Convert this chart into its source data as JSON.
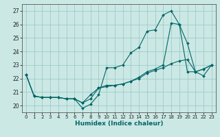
{
  "xlabel": "Humidex (Indice chaleur)",
  "background_color": "#cce8e4",
  "grid_color": "#99cccc",
  "line_color": "#006666",
  "xlim": [
    -0.5,
    23.5
  ],
  "ylim": [
    19.5,
    27.5
  ],
  "yticks": [
    20,
    21,
    22,
    23,
    24,
    25,
    26,
    27
  ],
  "xticks": [
    0,
    1,
    2,
    3,
    4,
    5,
    6,
    7,
    8,
    9,
    10,
    11,
    12,
    13,
    14,
    15,
    16,
    17,
    18,
    19,
    20,
    21,
    22,
    23
  ],
  "series": [
    [
      22.3,
      20.7,
      20.6,
      20.6,
      20.6,
      20.5,
      20.5,
      19.8,
      20.1,
      20.8,
      22.8,
      22.8,
      23.0,
      23.9,
      24.3,
      25.5,
      25.6,
      26.7,
      27.0,
      26.0,
      24.6,
      22.5,
      22.7,
      23.0
    ],
    [
      22.3,
      20.7,
      20.6,
      20.6,
      20.6,
      20.5,
      20.5,
      20.2,
      20.5,
      21.3,
      21.4,
      21.5,
      21.6,
      21.8,
      22.0,
      22.4,
      22.6,
      22.8,
      23.1,
      23.3,
      23.4,
      22.5,
      22.7,
      23.0
    ],
    [
      22.3,
      20.7,
      20.6,
      20.6,
      20.6,
      20.5,
      20.5,
      20.2,
      20.8,
      21.3,
      21.5,
      21.5,
      21.6,
      21.8,
      22.1,
      22.5,
      22.7,
      23.0,
      26.1,
      26.0,
      22.5,
      22.5,
      22.2,
      23.0
    ]
  ]
}
